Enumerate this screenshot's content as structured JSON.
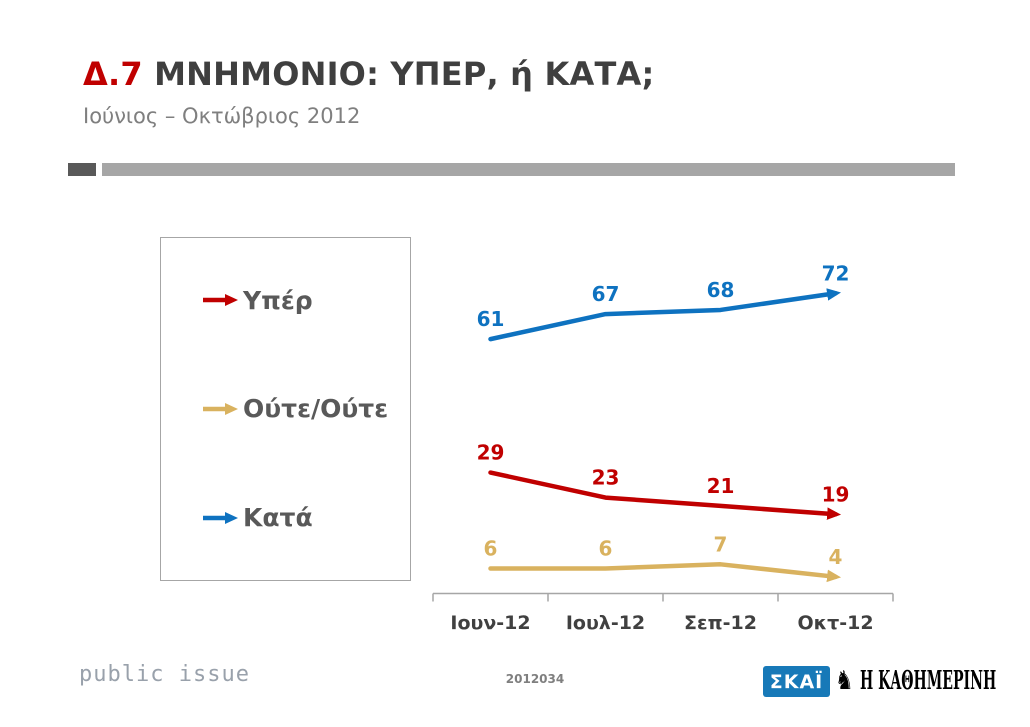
{
  "slide": {
    "title_prefix": "Δ.7",
    "title": "ΜΝΗΜΟΝΙΟ: ΥΠΕΡ, ή ΚΑΤΑ;",
    "subtitle": "Ιούνιος – Οκτώβριος 2012"
  },
  "colors": {
    "accent_red": "#C00000",
    "bar_dark": "#595959",
    "bar_light": "#A6A6A6",
    "axis_gray": "#A6A6A6",
    "tick_label_gray": "#404040"
  },
  "legend": {
    "items": [
      {
        "label": "Υπέρ",
        "color": "#C00000"
      },
      {
        "label": "Ούτε/Ούτε",
        "color": "#D9B25F"
      },
      {
        "label": "Κατά",
        "color": "#0E72C0"
      }
    ]
  },
  "chart_data": {
    "type": "line",
    "title": "ΜΝΗΜΟΝΙΟ: ΥΠΕΡ, ή ΚΑΤΑ; (Ιούνιος – Οκτώβριος 2012)",
    "categories": [
      "Ιουν-12",
      "Ιουλ-12",
      "Σεπ-12",
      "Οκτ-12"
    ],
    "series": [
      {
        "name": "Κατά",
        "color": "#0E72C0",
        "values": [
          61,
          67,
          68,
          72
        ]
      },
      {
        "name": "Υπέρ",
        "color": "#C00000",
        "values": [
          29,
          23,
          21,
          19
        ]
      },
      {
        "name": "Ούτε/Ούτε",
        "color": "#D9B25F",
        "values": [
          6,
          6,
          7,
          4
        ]
      }
    ],
    "xlabel": "",
    "ylabel": "",
    "ylim": [
      0,
      100
    ],
    "grid": false,
    "data_labels": true,
    "legend_position": "left",
    "line_end": "arrow"
  },
  "footer": {
    "brand": "public issue",
    "code": "2012034",
    "skai_label": "ΣΚΑΪ",
    "skai_color": "#1779B8",
    "kathimerini_label": "Η ΚΑΘΗΜΕΡΙΝΗ"
  }
}
